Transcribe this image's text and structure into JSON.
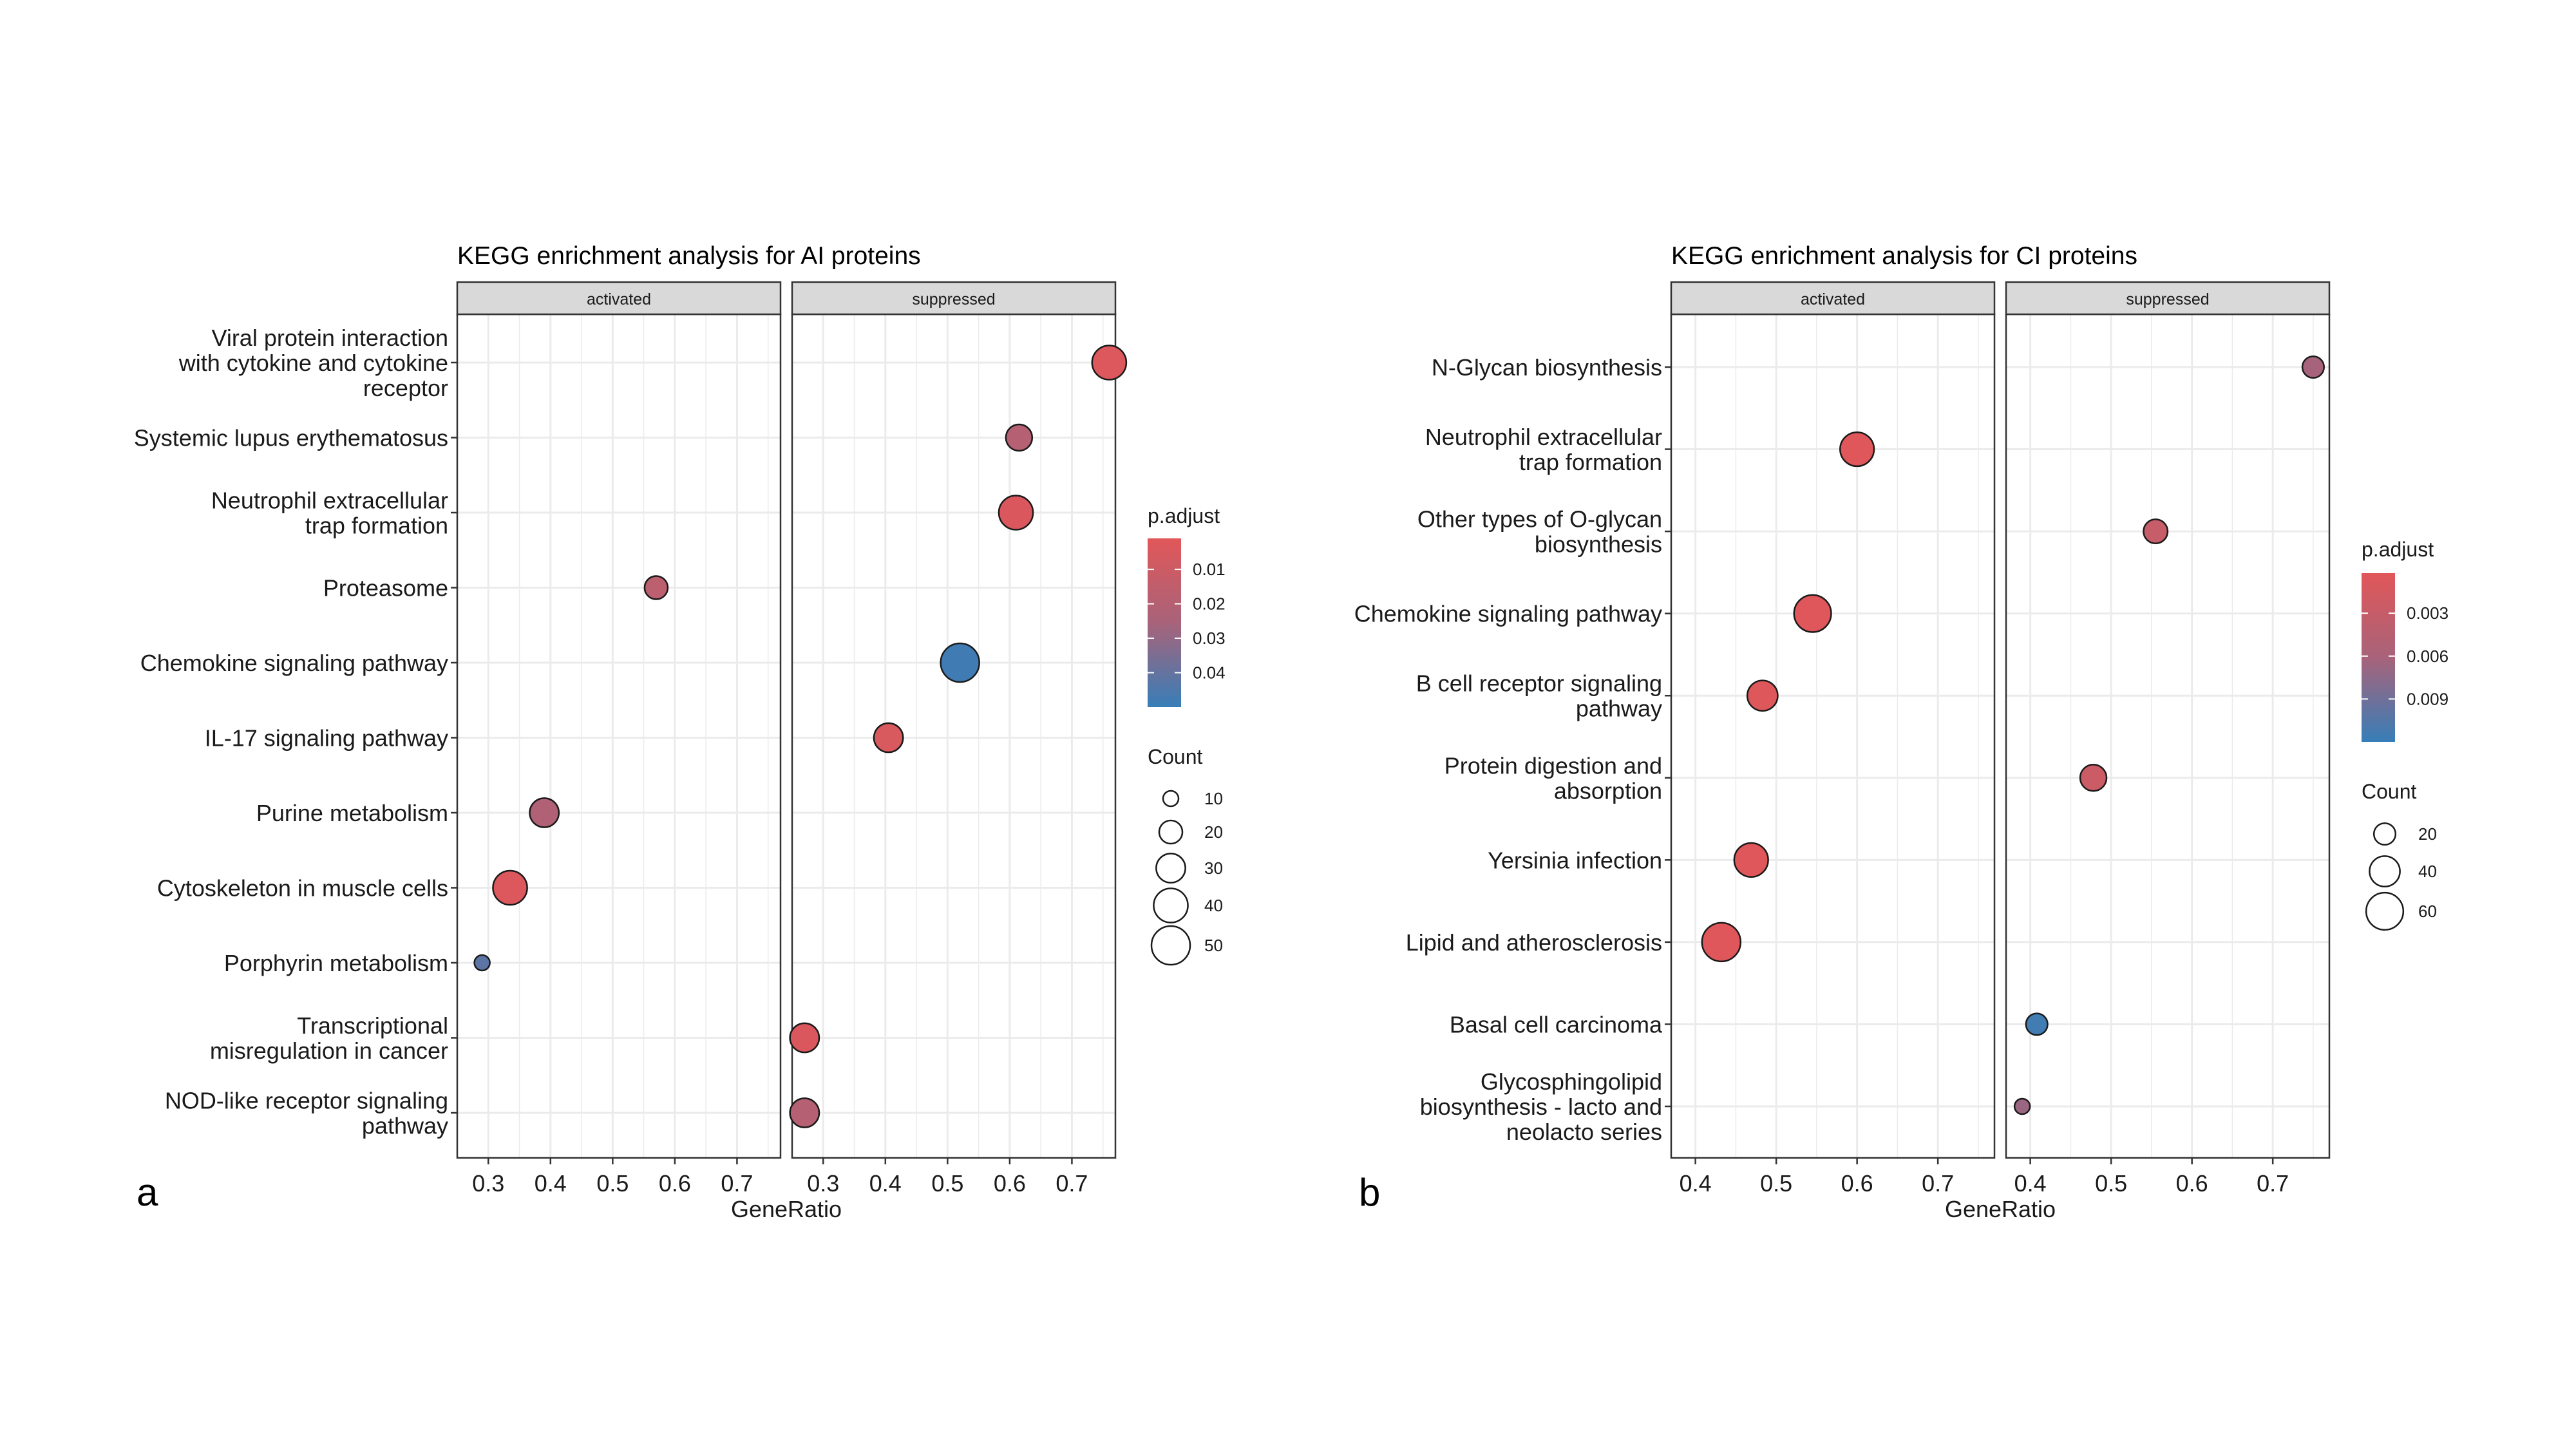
{
  "chart_data": [
    {
      "type": "scatter",
      "panel_letter": "a",
      "title": "KEGG enrichment analysis for AI proteins",
      "xlabel": "GeneRatio",
      "ylabel": "",
      "facets": [
        "activated",
        "suppressed"
      ],
      "xlim": [
        0.25,
        0.77
      ],
      "xticks": [
        0.3,
        0.4,
        0.5,
        0.6,
        0.7
      ],
      "xtick_labels": [
        "0.3",
        "0.4",
        "0.5",
        "0.6",
        "0.7"
      ],
      "grid": true,
      "categories": [
        [
          "Viral protein interaction",
          "with cytokine and cytokine",
          "receptor"
        ],
        [
          "Systemic lupus erythematosus"
        ],
        [
          "Neutrophil extracellular",
          "trap formation"
        ],
        [
          "Proteasome"
        ],
        [
          "Chemokine signaling pathway"
        ],
        [
          "IL-17 signaling pathway"
        ],
        [
          "Purine metabolism"
        ],
        [
          "Cytoskeleton in muscle cells"
        ],
        [
          "Porphyrin metabolism"
        ],
        [
          "Transcriptional",
          "misregulation in cancer"
        ],
        [
          "NOD-like receptor signaling",
          "pathway"
        ]
      ],
      "points": [
        {
          "category": 0,
          "facet": 1,
          "x": 0.76,
          "count": 40,
          "p_adjust": 0.003
        },
        {
          "category": 1,
          "facet": 1,
          "x": 0.615,
          "count": 25,
          "p_adjust": 0.02
        },
        {
          "category": 2,
          "facet": 1,
          "x": 0.61,
          "count": 40,
          "p_adjust": 0.004
        },
        {
          "category": 3,
          "facet": 0,
          "x": 0.57,
          "count": 20,
          "p_adjust": 0.017
        },
        {
          "category": 4,
          "facet": 1,
          "x": 0.52,
          "count": 50,
          "p_adjust": 0.048
        },
        {
          "category": 5,
          "facet": 1,
          "x": 0.405,
          "count": 30,
          "p_adjust": 0.005
        },
        {
          "category": 6,
          "facet": 0,
          "x": 0.39,
          "count": 30,
          "p_adjust": 0.022
        },
        {
          "category": 7,
          "facet": 0,
          "x": 0.335,
          "count": 40,
          "p_adjust": 0.003
        },
        {
          "category": 8,
          "facet": 0,
          "x": 0.29,
          "count": 10,
          "p_adjust": 0.042
        },
        {
          "category": 9,
          "facet": 1,
          "x": 0.27,
          "count": 30,
          "p_adjust": 0.004
        },
        {
          "category": 10,
          "facet": 1,
          "x": 0.27,
          "count": 30,
          "p_adjust": 0.02
        }
      ],
      "color_legend": {
        "title": "p.adjust",
        "range": [
          0.001,
          0.05
        ],
        "ticks": [
          0.01,
          0.02,
          0.03,
          0.04
        ],
        "tick_labels": [
          "0.01",
          "0.02",
          "0.03",
          "0.04"
        ]
      },
      "size_legend": {
        "title": "Count",
        "size_range": [
          10,
          50
        ],
        "values": [
          10,
          20,
          30,
          40,
          50
        ],
        "labels": [
          "10",
          "20",
          "30",
          "40",
          "50"
        ]
      }
    },
    {
      "type": "scatter",
      "panel_letter": "b",
      "title": "KEGG enrichment analysis for CI proteins",
      "xlabel": "GeneRatio",
      "ylabel": "",
      "facets": [
        "activated",
        "suppressed"
      ],
      "xlim": [
        0.37,
        0.77
      ],
      "xticks": [
        0.4,
        0.5,
        0.6,
        0.7
      ],
      "xtick_labels": [
        "0.4",
        "0.5",
        "0.6",
        "0.7"
      ],
      "grid": true,
      "categories": [
        [
          "N-Glycan biosynthesis"
        ],
        [
          "Neutrophil extracellular",
          "trap formation"
        ],
        [
          "Other types of O-glycan",
          "biosynthesis"
        ],
        [
          "Chemokine signaling pathway"
        ],
        [
          "B cell receptor signaling",
          "pathway"
        ],
        [
          "Protein digestion and",
          "absorption"
        ],
        [
          "Yersinia infection"
        ],
        [
          "Lipid and atherosclerosis"
        ],
        [
          "Basal cell carcinoma"
        ],
        [
          "Glycosphingolipid",
          "biosynthesis - lacto and",
          "neolacto series"
        ]
      ],
      "points": [
        {
          "category": 0,
          "facet": 1,
          "x": 0.75,
          "count": 20,
          "p_adjust": 0.0062
        },
        {
          "category": 1,
          "facet": 0,
          "x": 0.6,
          "count": 50,
          "p_adjust": 0.0004
        },
        {
          "category": 2,
          "facet": 1,
          "x": 0.555,
          "count": 25,
          "p_adjust": 0.003
        },
        {
          "category": 3,
          "facet": 0,
          "x": 0.545,
          "count": 60,
          "p_adjust": 0.0004
        },
        {
          "category": 4,
          "facet": 0,
          "x": 0.483,
          "count": 40,
          "p_adjust": 0.0005
        },
        {
          "category": 5,
          "facet": 1,
          "x": 0.478,
          "count": 30,
          "p_adjust": 0.0025
        },
        {
          "category": 6,
          "facet": 0,
          "x": 0.469,
          "count": 50,
          "p_adjust": 0.0004
        },
        {
          "category": 7,
          "facet": 0,
          "x": 0.432,
          "count": 65,
          "p_adjust": 0.0004
        },
        {
          "category": 8,
          "facet": 1,
          "x": 0.408,
          "count": 20,
          "p_adjust": 0.0115
        },
        {
          "category": 9,
          "facet": 1,
          "x": 0.39,
          "count": 10,
          "p_adjust": 0.0068
        }
      ],
      "color_legend": {
        "title": "p.adjust",
        "range": [
          0.0002,
          0.012
        ],
        "ticks": [
          0.003,
          0.006,
          0.009
        ],
        "tick_labels": [
          "0.003",
          "0.006",
          "0.009"
        ]
      },
      "size_legend": {
        "title": "Count",
        "size_range": [
          10,
          65
        ],
        "values": [
          20,
          40,
          60
        ],
        "labels": [
          "20",
          "40",
          "60"
        ]
      }
    }
  ],
  "colors": {
    "low_p": "#e15759",
    "mid_p": "#a8637a",
    "high_p": "#377eb8",
    "strip_fill": "#d9d9d9",
    "grid": "#ebebeb",
    "panel_border": "#333333"
  }
}
